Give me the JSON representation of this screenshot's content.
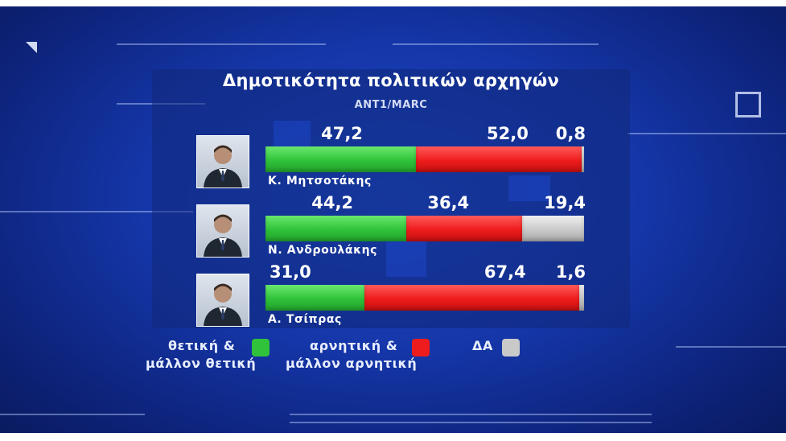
{
  "chart_data": {
    "type": "bar",
    "stacked": true,
    "orientation": "horizontal",
    "title": "Δημοτικότητα πολιτικών αρχηγών",
    "subtitle": "ANT1/MARC",
    "categories": [
      "Κ. Μητσοτάκης",
      "Ν. Ανδρουλάκης",
      "Α. Τσίπρας"
    ],
    "series": [
      {
        "name": "θετική & μάλλον θετική",
        "color": "#2fc23a",
        "values": [
          47.2,
          44.2,
          31.0
        ],
        "labels": [
          "47,2",
          "44,2",
          "31,0"
        ]
      },
      {
        "name": "αρνητική & μάλλον αρνητική",
        "color": "#ee1c1c",
        "values": [
          52.0,
          36.4,
          67.4
        ],
        "labels": [
          "52,0",
          "36,4",
          "67,4"
        ]
      },
      {
        "name": "ΔΑ",
        "color": "#c9c9c9",
        "values": [
          0.8,
          19.4,
          1.6
        ],
        "labels": [
          "0,8",
          "19,4",
          "1,6"
        ]
      }
    ],
    "xlim": [
      0,
      100
    ],
    "legend_position": "bottom"
  },
  "legend": {
    "positive_line1": "θετική &",
    "positive_line2": "μάλλον θετική",
    "negative_line1": "αρνητική &",
    "negative_line2": "μάλλον αρνητική",
    "dk": "ΔΑ"
  }
}
